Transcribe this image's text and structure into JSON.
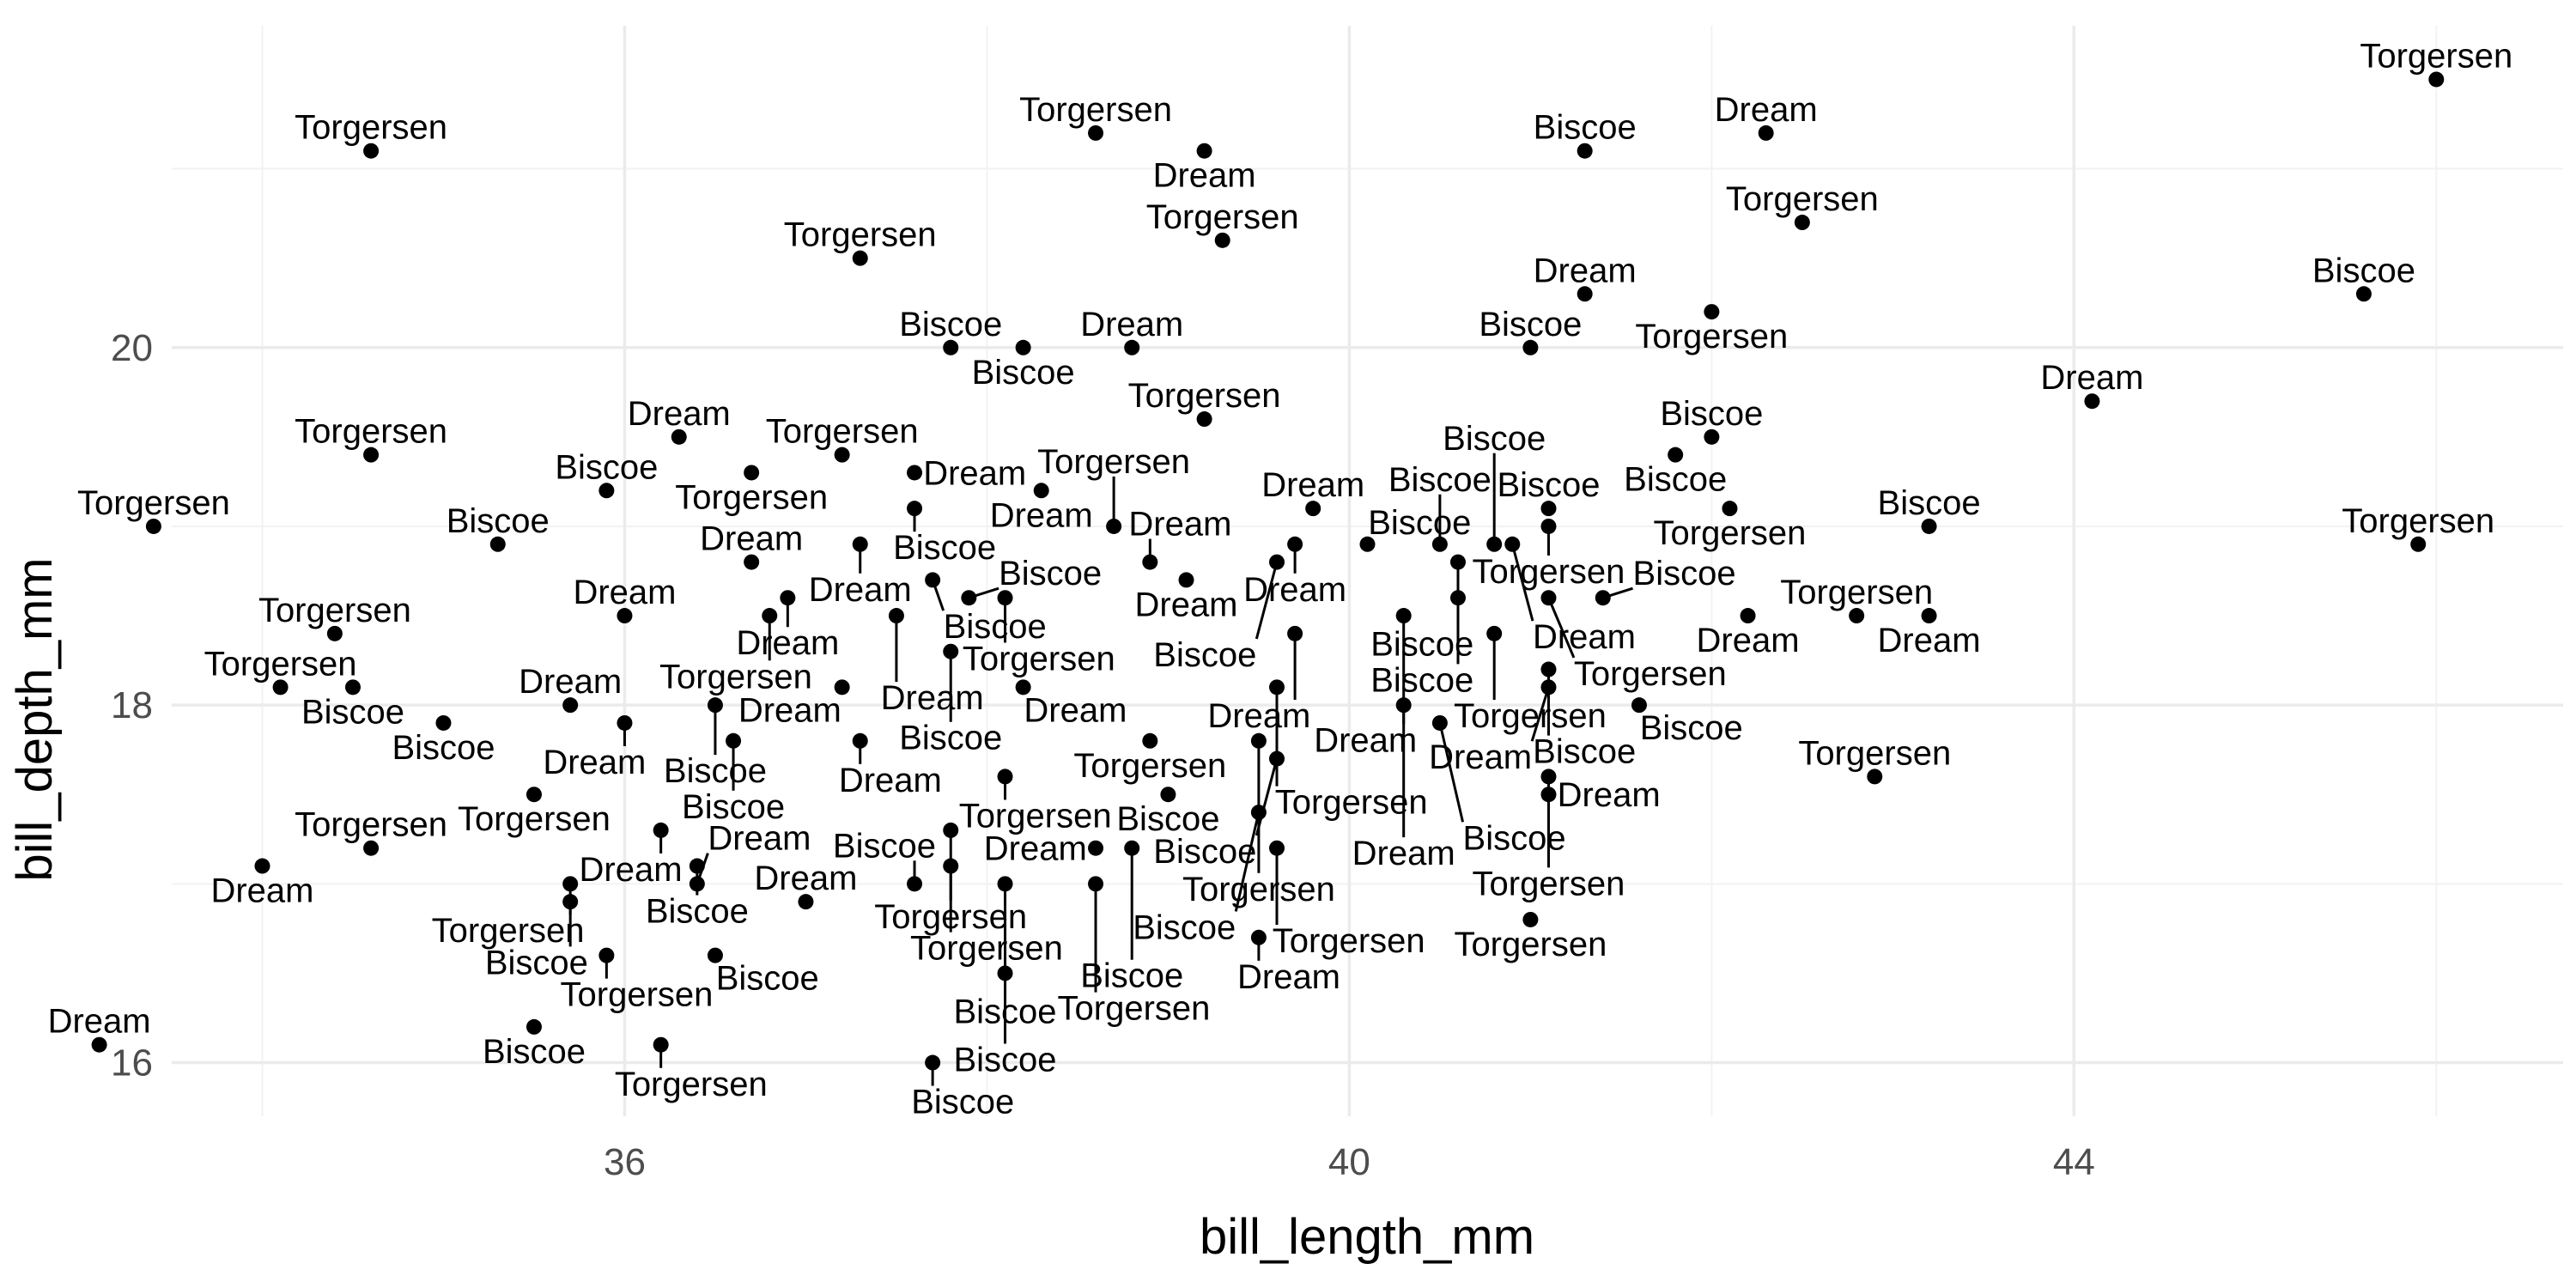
{
  "chart_data": {
    "type": "scatter",
    "xlabel": "bill_length_mm",
    "ylabel": "bill_depth_mm",
    "xlim": [
      33.5,
      46.7
    ],
    "ylim": [
      15.7,
      21.8
    ],
    "x_ticks": [
      36,
      40,
      44
    ],
    "y_ticks": [
      16,
      18,
      20
    ],
    "x_tick_labels": [
      "36",
      "40",
      "44"
    ],
    "y_tick_labels": [
      "16",
      "18",
      "20"
    ],
    "grid": true,
    "legend": "none",
    "colors": {
      "point": "#000000",
      "grid_major": "#ebebeb",
      "grid_minor": "#f2f2f2",
      "text": "#000000",
      "tick_text": "#4d4d4d"
    },
    "points": [
      {
        "x": 34.6,
        "y": 21.1,
        "label": "Torgersen"
      },
      {
        "x": 38.6,
        "y": 21.2,
        "label": "Torgersen"
      },
      {
        "x": 39.2,
        "y": 21.1,
        "label": "Dream"
      },
      {
        "x": 41.3,
        "y": 21.1,
        "label": "Biscoe"
      },
      {
        "x": 42.3,
        "y": 21.2,
        "label": "Dream"
      },
      {
        "x": 46.0,
        "y": 21.5,
        "label": "Torgersen"
      },
      {
        "x": 37.3,
        "y": 20.5,
        "label": "Torgersen"
      },
      {
        "x": 39.3,
        "y": 20.6,
        "label": "Torgersen"
      },
      {
        "x": 41.3,
        "y": 20.3,
        "label": "Dream"
      },
      {
        "x": 42.5,
        "y": 20.7,
        "label": "Torgersen"
      },
      {
        "x": 45.6,
        "y": 20.3,
        "label": "Biscoe"
      },
      {
        "x": 37.8,
        "y": 20.0,
        "label": "Biscoe"
      },
      {
        "x": 38.2,
        "y": 20.0,
        "label": "Biscoe"
      },
      {
        "x": 38.8,
        "y": 20.0,
        "label": "Dream"
      },
      {
        "x": 41.0,
        "y": 20.0,
        "label": "Biscoe"
      },
      {
        "x": 42.0,
        "y": 20.2,
        "label": "Torgersen"
      },
      {
        "x": 39.2,
        "y": 19.6,
        "label": "Torgersen"
      },
      {
        "x": 44.1,
        "y": 19.7,
        "label": "Dream"
      },
      {
        "x": 34.6,
        "y": 19.4,
        "label": "Torgersen"
      },
      {
        "x": 36.3,
        "y": 19.5,
        "label": "Dream"
      },
      {
        "x": 37.2,
        "y": 19.4,
        "label": "Torgersen"
      },
      {
        "x": 41.8,
        "y": 19.4,
        "label": "Biscoe"
      },
      {
        "x": 42.0,
        "y": 19.5,
        "label": "Biscoe"
      },
      {
        "x": 35.9,
        "y": 19.2,
        "label": "Biscoe"
      },
      {
        "x": 36.7,
        "y": 19.3,
        "label": "Torgersen"
      },
      {
        "x": 37.6,
        "y": 19.3,
        "label": "Dream"
      },
      {
        "x": 37.6,
        "y": 19.1,
        "label": "Biscoe"
      },
      {
        "x": 38.3,
        "y": 19.2,
        "label": "Dream"
      },
      {
        "x": 39.8,
        "y": 19.1,
        "label": "Dream"
      },
      {
        "x": 41.1,
        "y": 19.1,
        "label": "Biscoe"
      },
      {
        "x": 42.1,
        "y": 19.1,
        "label": "Torgersen"
      },
      {
        "x": 33.4,
        "y": 19.0,
        "label": "Torgersen"
      },
      {
        "x": 38.7,
        "y": 19.0,
        "label": "Torgersen"
      },
      {
        "x": 41.1,
        "y": 19.0,
        "label": "Torgersen"
      },
      {
        "x": 43.2,
        "y": 19.0,
        "label": "Biscoe"
      },
      {
        "x": 35.3,
        "y": 18.9,
        "label": "Biscoe"
      },
      {
        "x": 37.3,
        "y": 18.9,
        "label": "Dream"
      },
      {
        "x": 38.9,
        "y": 18.8,
        "label": "Dream"
      },
      {
        "x": 39.7,
        "y": 18.9,
        "label": "Dream"
      },
      {
        "x": 40.1,
        "y": 18.9,
        "label": "Biscoe"
      },
      {
        "x": 40.5,
        "y": 18.9,
        "label": "Biscoe"
      },
      {
        "x": 40.8,
        "y": 18.9,
        "label": "Biscoe"
      },
      {
        "x": 40.9,
        "y": 18.9,
        "label": "Dream"
      },
      {
        "x": 45.9,
        "y": 18.9,
        "label": "Torgersen"
      },
      {
        "x": 36.7,
        "y": 18.8,
        "label": "Dream"
      },
      {
        "x": 37.7,
        "y": 18.7,
        "label": "Biscoe"
      },
      {
        "x": 39.1,
        "y": 18.7,
        "label": "Dream"
      },
      {
        "x": 39.6,
        "y": 18.8,
        "label": "Biscoe"
      },
      {
        "x": 40.6,
        "y": 18.8,
        "label": "Biscoe"
      },
      {
        "x": 36.9,
        "y": 18.6,
        "label": "Dream"
      },
      {
        "x": 37.9,
        "y": 18.6,
        "label": "Biscoe"
      },
      {
        "x": 38.1,
        "y": 18.6,
        "label": "Torgersen"
      },
      {
        "x": 40.6,
        "y": 18.6,
        "label": "Biscoe"
      },
      {
        "x": 41.1,
        "y": 18.6,
        "label": "Torgersen"
      },
      {
        "x": 41.4,
        "y": 18.6,
        "label": "Biscoe"
      },
      {
        "x": 36.0,
        "y": 18.5,
        "label": "Dream"
      },
      {
        "x": 36.8,
        "y": 18.5,
        "label": "Torgersen"
      },
      {
        "x": 37.5,
        "y": 18.5,
        "label": "Dream"
      },
      {
        "x": 40.3,
        "y": 18.5,
        "label": "Dream"
      },
      {
        "x": 42.2,
        "y": 18.5,
        "label": "Dream"
      },
      {
        "x": 42.8,
        "y": 18.5,
        "label": "Torgersen"
      },
      {
        "x": 43.2,
        "y": 18.5,
        "label": "Dream"
      },
      {
        "x": 34.4,
        "y": 18.4,
        "label": "Torgersen"
      },
      {
        "x": 39.7,
        "y": 18.4,
        "label": "Dream"
      },
      {
        "x": 40.8,
        "y": 18.4,
        "label": "Torgersen"
      },
      {
        "x": 37.8,
        "y": 18.3,
        "label": "Biscoe"
      },
      {
        "x": 41.1,
        "y": 18.2,
        "label": "Biscoe"
      },
      {
        "x": 34.1,
        "y": 18.1,
        "label": "Torgersen"
      },
      {
        "x": 34.5,
        "y": 18.1,
        "label": "Biscoe"
      },
      {
        "x": 37.2,
        "y": 18.1,
        "label": "Dream"
      },
      {
        "x": 38.2,
        "y": 18.1,
        "label": "Dream"
      },
      {
        "x": 39.6,
        "y": 18.1,
        "label": "Torgersen"
      },
      {
        "x": 41.1,
        "y": 18.1,
        "label": "Dream"
      },
      {
        "x": 35.7,
        "y": 18.0,
        "label": "Dream"
      },
      {
        "x": 36.5,
        "y": 18.0,
        "label": "Biscoe"
      },
      {
        "x": 40.3,
        "y": 18.0,
        "label": "Dream"
      },
      {
        "x": 41.6,
        "y": 18.0,
        "label": "Biscoe"
      },
      {
        "x": 35.0,
        "y": 17.9,
        "label": "Biscoe"
      },
      {
        "x": 36.0,
        "y": 17.9,
        "label": "Dream"
      },
      {
        "x": 40.5,
        "y": 17.9,
        "label": "Biscoe"
      },
      {
        "x": 36.6,
        "y": 17.8,
        "label": "Biscoe"
      },
      {
        "x": 37.3,
        "y": 17.8,
        "label": "Dream"
      },
      {
        "x": 38.9,
        "y": 17.8,
        "label": "Torgersen"
      },
      {
        "x": 39.5,
        "y": 17.8,
        "label": "Torgersen"
      },
      {
        "x": 39.6,
        "y": 17.7,
        "label": "Biscoe"
      },
      {
        "x": 38.1,
        "y": 17.6,
        "label": "Torgersen"
      },
      {
        "x": 41.1,
        "y": 17.6,
        "label": "Torgersen"
      },
      {
        "x": 42.9,
        "y": 17.6,
        "label": "Torgersen"
      },
      {
        "x": 35.5,
        "y": 17.5,
        "label": "Torgersen"
      },
      {
        "x": 39.0,
        "y": 17.5,
        "label": "Biscoe"
      },
      {
        "x": 41.1,
        "y": 17.5,
        "label": "Dream"
      },
      {
        "x": 39.5,
        "y": 17.4,
        "label": "Biscoe"
      },
      {
        "x": 36.2,
        "y": 17.3,
        "label": "Dream"
      },
      {
        "x": 37.8,
        "y": 17.3,
        "label": "Torgersen"
      },
      {
        "x": 34.6,
        "y": 17.2,
        "label": "Torgersen"
      },
      {
        "x": 38.6,
        "y": 17.2,
        "label": "Dream"
      },
      {
        "x": 38.8,
        "y": 17.2,
        "label": "Biscoe"
      },
      {
        "x": 39.6,
        "y": 17.2,
        "label": "Torgersen"
      },
      {
        "x": 34.0,
        "y": 17.1,
        "label": "Dream"
      },
      {
        "x": 36.4,
        "y": 17.1,
        "label": "Biscoe"
      },
      {
        "x": 37.8,
        "y": 17.1,
        "label": "Torgersen"
      },
      {
        "x": 35.7,
        "y": 17.0,
        "label": "Torgersen"
      },
      {
        "x": 36.4,
        "y": 17.0,
        "label": "Dream"
      },
      {
        "x": 37.6,
        "y": 17.0,
        "label": "Biscoe"
      },
      {
        "x": 38.1,
        "y": 17.0,
        "label": "Biscoe"
      },
      {
        "x": 38.6,
        "y": 17.0,
        "label": "Torgersen"
      },
      {
        "x": 35.7,
        "y": 16.9,
        "label": "Biscoe"
      },
      {
        "x": 37.0,
        "y": 16.9,
        "label": "Dream"
      },
      {
        "x": 41.0,
        "y": 16.8,
        "label": "Torgersen"
      },
      {
        "x": 39.5,
        "y": 16.7,
        "label": "Dream"
      },
      {
        "x": 35.9,
        "y": 16.6,
        "label": "Torgersen"
      },
      {
        "x": 36.5,
        "y": 16.6,
        "label": "Biscoe"
      },
      {
        "x": 38.1,
        "y": 16.5,
        "label": "Biscoe"
      },
      {
        "x": 35.5,
        "y": 16.2,
        "label": "Biscoe"
      },
      {
        "x": 36.2,
        "y": 16.1,
        "label": "Torgersen"
      },
      {
        "x": 33.1,
        "y": 16.1,
        "label": "Dream"
      },
      {
        "x": 37.7,
        "y": 16.0,
        "label": "Biscoe"
      }
    ]
  }
}
